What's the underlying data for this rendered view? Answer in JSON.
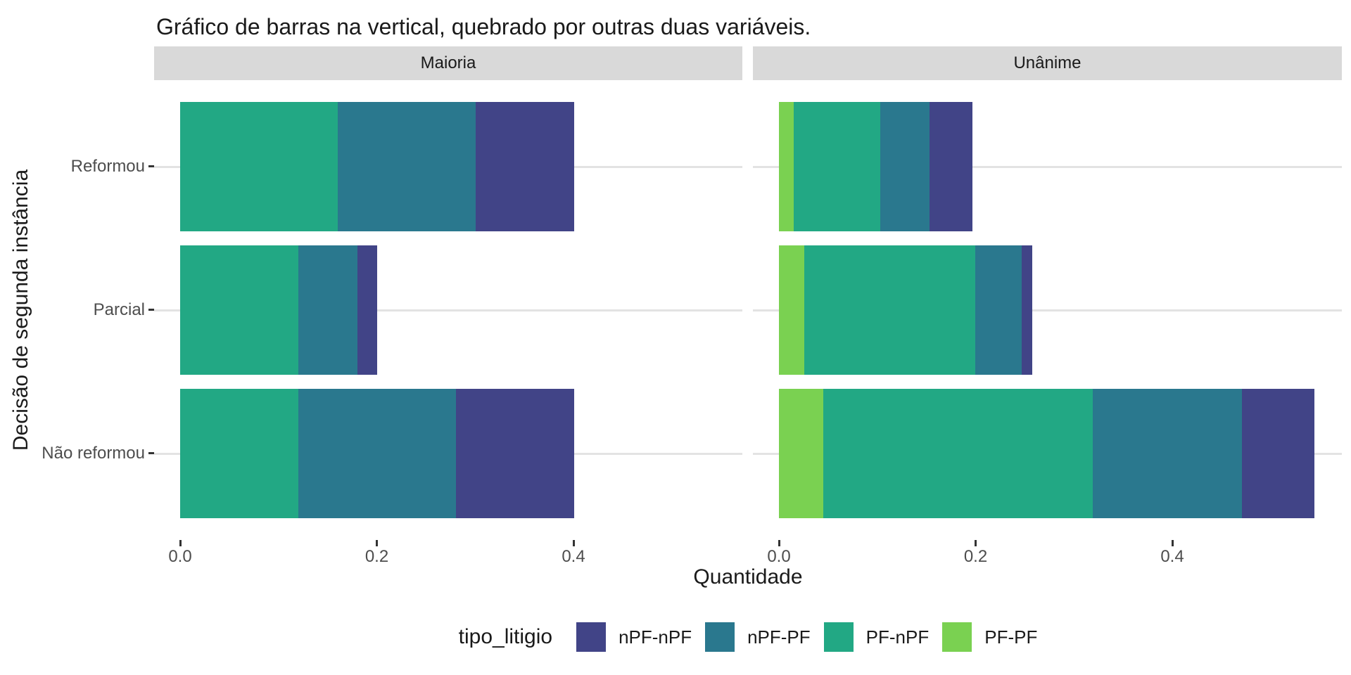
{
  "chart_data": {
    "type": "bar",
    "orientation": "horizontal",
    "stacked": true,
    "title": "Gráfico de barras na vertical, quebrado por outras duas variáveis.",
    "xlabel": "Quantidade",
    "ylabel": "Decisão de segunda instância",
    "categories": [
      "Reformou",
      "Parcial",
      "Não reformou"
    ],
    "x_ticks": [
      0.0,
      0.2,
      0.4
    ],
    "x_tick_labels": [
      "0.0",
      "0.2",
      "0.4"
    ],
    "xlim": [
      0,
      0.572
    ],
    "grid": "horizontal-major-only",
    "legend_position": "bottom",
    "legend_title": "tipo_litigio",
    "legend": [
      {
        "label": "nPF-nPF",
        "color": "#414487"
      },
      {
        "label": "nPF-PF",
        "color": "#2A788E"
      },
      {
        "label": "PF-nPF",
        "color": "#22A884"
      },
      {
        "label": "PF-PF",
        "color": "#7AD151"
      }
    ],
    "stack_order": [
      "PF-PF",
      "PF-nPF",
      "nPF-PF",
      "nPF-nPF"
    ],
    "series_colors": {
      "PF-PF": "#7AD151",
      "PF-nPF": "#22A884",
      "nPF-PF": "#2A788E",
      "nPF-nPF": "#414487"
    },
    "facets": [
      {
        "label": "Maioria",
        "values": {
          "Reformou": {
            "PF-PF": 0,
            "PF-nPF": 0.16,
            "nPF-PF": 0.14,
            "nPF-nPF": 0.1
          },
          "Parcial": {
            "PF-PF": 0,
            "PF-nPF": 0.12,
            "nPF-PF": 0.06,
            "nPF-nPF": 0.02
          },
          "Não reformou": {
            "PF-PF": 0,
            "PF-nPF": 0.12,
            "nPF-PF": 0.16,
            "nPF-nPF": 0.12
          }
        }
      },
      {
        "label": "Unânime",
        "values": {
          "Reformou": {
            "PF-PF": 0.015,
            "PF-nPF": 0.088,
            "nPF-PF": 0.05,
            "nPF-nPF": 0.044
          },
          "Parcial": {
            "PF-PF": 0.026,
            "PF-nPF": 0.174,
            "nPF-PF": 0.047,
            "nPF-nPF": 0.011
          },
          "Não reformou": {
            "PF-PF": 0.045,
            "PF-nPF": 0.274,
            "nPF-PF": 0.152,
            "nPF-nPF": 0.074
          }
        }
      }
    ],
    "style": {
      "strip_bg": "#D9D9D9",
      "gridline_color": "#E3E3E3",
      "tick_color": "#333333",
      "tick_label_color": "#4d4d4d",
      "text_color": "#1a1a1a"
    }
  }
}
